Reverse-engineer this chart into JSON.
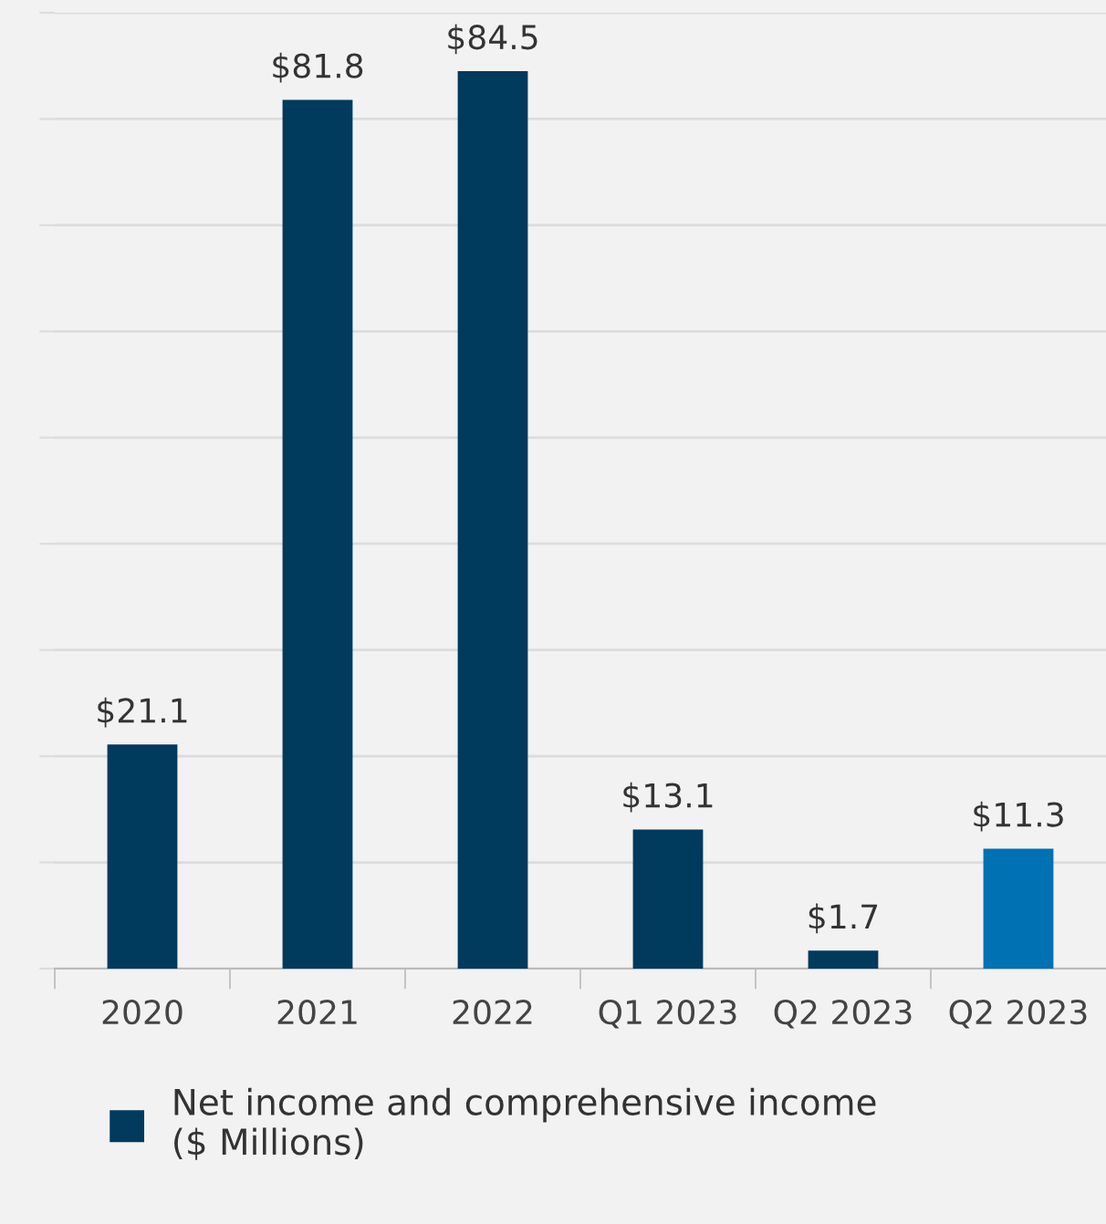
{
  "chart_data": {
    "type": "bar",
    "categories": [
      "2020",
      "2021",
      "2022",
      "Q1 2023",
      "Q2 2023",
      "Q2 2023"
    ],
    "series": [
      {
        "name": "Net income and comprehensive income\n($ Millions)",
        "color": "#003a5d",
        "colors": [
          "#003a5d",
          "#003a5d",
          "#003a5d",
          "#003a5d",
          "#003a5d",
          "#0071b3"
        ],
        "values": [
          21.1,
          81.8,
          84.5,
          13.1,
          1.7,
          11.3
        ],
        "value_labels": [
          "$21.1",
          "$81.8",
          "$84.5",
          "$13.1",
          "$1.7",
          "$11.3"
        ]
      }
    ],
    "ylim": [
      0,
      90
    ],
    "yticks": [
      {
        "value": 0,
        "label": null
      },
      {
        "value": 10,
        "label": null
      },
      {
        "value": 20,
        "label": null
      },
      {
        "value": 30,
        "label": null
      },
      {
        "value": 40,
        "label": null
      },
      {
        "value": 50,
        "label": null
      },
      {
        "value": 60,
        "label": null
      },
      {
        "value": 70,
        "label": null
      },
      {
        "value": 80,
        "label": null
      },
      {
        "value": 90,
        "label": null
      }
    ],
    "grid": "y",
    "legend": "bottom"
  }
}
